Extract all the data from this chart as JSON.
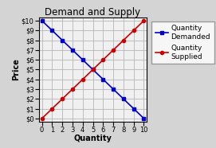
{
  "title": "Demand and Supply",
  "xlabel": "Quantity",
  "ylabel": "Price",
  "demand_x": [
    0,
    1,
    2,
    3,
    4,
    5,
    6,
    7,
    8,
    9,
    10
  ],
  "demand_y": [
    10,
    9,
    8,
    7,
    6,
    5,
    4,
    3,
    2,
    1,
    0
  ],
  "supply_x": [
    0,
    1,
    2,
    3,
    4,
    5,
    6,
    7,
    8,
    9,
    10
  ],
  "supply_y": [
    0,
    1,
    2,
    3,
    4,
    5,
    6,
    7,
    8,
    9,
    10
  ],
  "demand_color": "#0000cc",
  "supply_color": "#cc0000",
  "demand_label": "Quantity\nDemanded",
  "supply_label": "Quantity\nSupplied",
  "xlim": [
    -0.3,
    10.3
  ],
  "ylim": [
    -0.3,
    10.3
  ],
  "x_ticks": [
    0,
    1,
    2,
    3,
    4,
    5,
    6,
    7,
    8,
    9,
    10
  ],
  "y_ticks": [
    0,
    1,
    2,
    3,
    4,
    5,
    6,
    7,
    8,
    9,
    10
  ],
  "background_color": "#d4d4d4",
  "plot_background": "#f0f0f0",
  "title_fontsize": 8.5,
  "axis_label_fontsize": 7,
  "tick_fontsize": 6,
  "legend_fontsize": 6.5
}
